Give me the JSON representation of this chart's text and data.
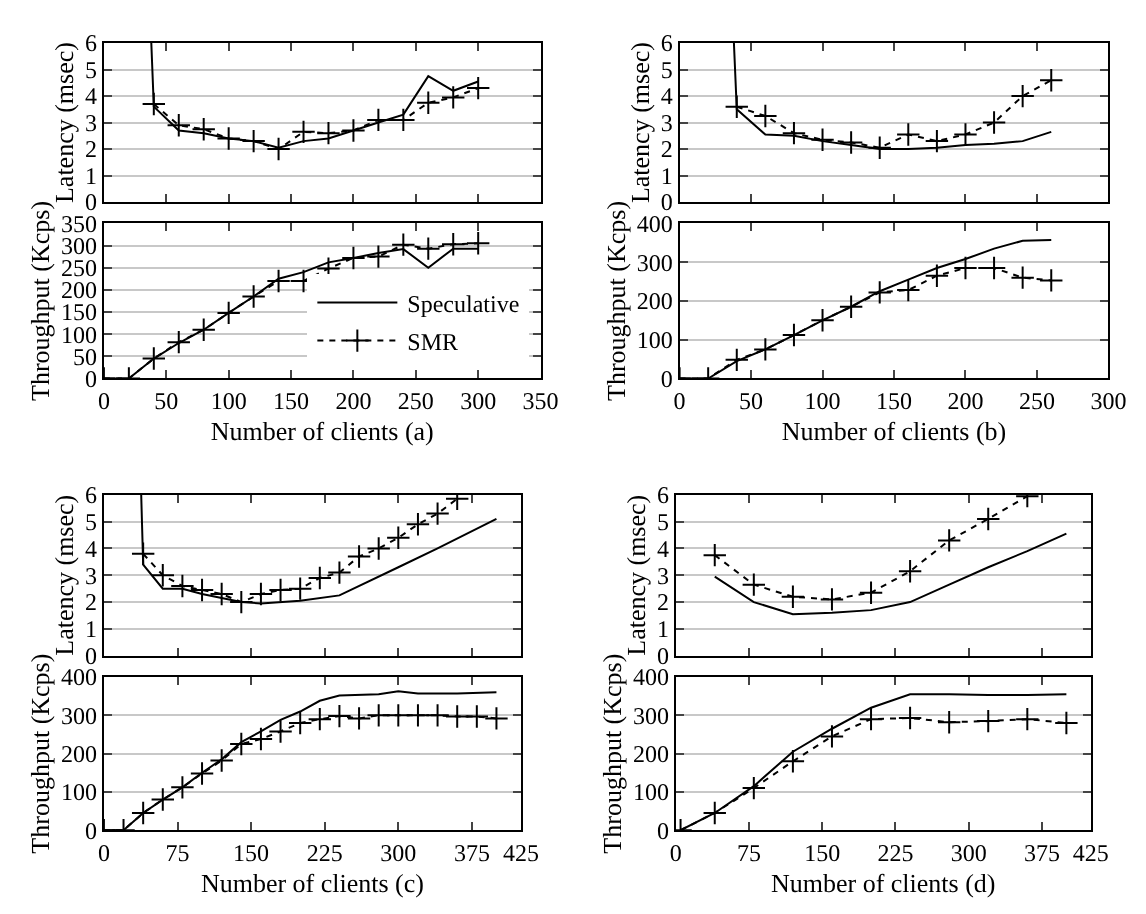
{
  "chart_data": [
    {
      "type": "line",
      "ylabel": "Latency (msec)",
      "xlim": [
        0,
        350
      ],
      "xticks": [
        0,
        50,
        100,
        150,
        200,
        250,
        300,
        350
      ],
      "ylim": [
        0,
        6
      ],
      "yticks": [
        0,
        1,
        2,
        3,
        4,
        5,
        6
      ],
      "grid": "y",
      "tick_labels": "y",
      "series": [
        {
          "color": "#000000",
          "line_style": "solid",
          "marker": "none",
          "x": [
            38,
            40,
            60,
            80,
            100,
            120,
            140,
            160,
            180,
            200,
            220,
            240,
            260,
            280,
            300
          ],
          "values": [
            6,
            3.6,
            2.7,
            2.6,
            2.4,
            2.3,
            2.05,
            2.3,
            2.4,
            2.7,
            3.0,
            3.3,
            4.75,
            4.2,
            4.55
          ]
        },
        {
          "color": "#000000",
          "line_style": "dotted",
          "marker": "cross",
          "x": [
            40,
            60,
            80,
            100,
            120,
            140,
            160,
            180,
            200,
            220,
            240,
            260,
            280,
            300
          ],
          "values": [
            3.7,
            2.9,
            2.75,
            2.4,
            2.3,
            2.0,
            2.65,
            2.6,
            2.7,
            3.1,
            3.1,
            3.75,
            3.95,
            4.3
          ]
        }
      ]
    },
    {
      "type": "line",
      "ylabel": "Throughput (Kcps)",
      "xlabel": "Number of clients (a)",
      "xlim": [
        0,
        350
      ],
      "xticks": [
        0,
        50,
        100,
        150,
        200,
        250,
        300,
        350
      ],
      "ylim": [
        0,
        350
      ],
      "yticks": [
        0,
        50,
        100,
        150,
        200,
        250,
        300,
        350
      ],
      "grid": "y",
      "legend": "bottom right",
      "series": [
        {
          "name": "Speculative",
          "color": "#000000",
          "line_style": "solid",
          "marker": "none",
          "x": [
            0,
            20,
            40,
            60,
            80,
            100,
            120,
            140,
            160,
            180,
            200,
            220,
            240,
            260,
            280,
            300
          ],
          "values": [
            0,
            0,
            45,
            80,
            110,
            148,
            185,
            225,
            240,
            262,
            272,
            283,
            292,
            250,
            293,
            293
          ]
        },
        {
          "name": "SMR",
          "color": "#000000",
          "line_style": "dotted",
          "marker": "cross",
          "x": [
            0,
            20,
            40,
            60,
            80,
            100,
            120,
            140,
            160,
            180,
            200,
            220,
            240,
            260,
            280,
            300
          ],
          "values": [
            0,
            0,
            45,
            82,
            110,
            148,
            185,
            220,
            220,
            248,
            272,
            275,
            302,
            293,
            303,
            305
          ]
        }
      ]
    },
    {
      "type": "line",
      "ylabel": "Latency (msec)",
      "xlim": [
        0,
        300
      ],
      "xticks": [
        0,
        50,
        100,
        150,
        200,
        250,
        300
      ],
      "ylim": [
        0,
        6
      ],
      "yticks": [
        0,
        1,
        2,
        3,
        4,
        5,
        6
      ],
      "grid": "y",
      "tick_labels": "y",
      "series": [
        {
          "color": "#000000",
          "line_style": "solid",
          "marker": "none",
          "x": [
            38,
            40,
            60,
            80,
            100,
            120,
            140,
            160,
            180,
            200,
            220,
            240,
            260
          ],
          "values": [
            6,
            3.5,
            2.55,
            2.5,
            2.3,
            2.15,
            2.0,
            2.0,
            2.05,
            2.15,
            2.2,
            2.3,
            2.65
          ]
        },
        {
          "color": "#000000",
          "line_style": "dotted",
          "marker": "cross",
          "x": [
            40,
            60,
            80,
            100,
            120,
            140,
            160,
            180,
            200,
            220,
            240,
            260
          ],
          "values": [
            3.6,
            3.25,
            2.6,
            2.35,
            2.25,
            2.05,
            2.55,
            2.3,
            2.55,
            3.0,
            4.0,
            4.6
          ]
        }
      ]
    },
    {
      "type": "line",
      "ylabel": "Throughput (Kcps)",
      "xlabel": "Number of clients (b)",
      "xlim": [
        0,
        300
      ],
      "xticks": [
        0,
        50,
        100,
        150,
        200,
        250,
        300
      ],
      "ylim": [
        0,
        400
      ],
      "yticks": [
        0,
        100,
        200,
        300,
        400
      ],
      "grid": "y",
      "series": [
        {
          "color": "#000000",
          "line_style": "solid",
          "marker": "none",
          "x": [
            0,
            20,
            40,
            60,
            80,
            100,
            120,
            140,
            160,
            180,
            200,
            220,
            240,
            260
          ],
          "values": [
            0,
            0,
            45,
            75,
            112,
            150,
            185,
            225,
            255,
            285,
            308,
            335,
            355,
            357
          ]
        },
        {
          "color": "#000000",
          "line_style": "dotted",
          "marker": "cross",
          "x": [
            0,
            20,
            40,
            60,
            80,
            100,
            120,
            140,
            160,
            180,
            200,
            220,
            240,
            260
          ],
          "values": [
            0,
            0,
            48,
            75,
            112,
            150,
            185,
            222,
            228,
            265,
            285,
            285,
            260,
            253
          ]
        }
      ]
    },
    {
      "type": "line",
      "ylabel": "Latency (msec)",
      "xlim": [
        0,
        425
      ],
      "xticks": [
        0,
        75,
        150,
        225,
        300,
        375,
        425
      ],
      "ylim": [
        0,
        6
      ],
      "yticks": [
        0,
        1,
        2,
        3,
        4,
        5,
        6
      ],
      "grid": "y",
      "tick_labels": "y",
      "series": [
        {
          "color": "#000000",
          "line_style": "solid",
          "marker": "none",
          "x": [
            38,
            40,
            60,
            80,
            100,
            120,
            140,
            160,
            200,
            240,
            300,
            340,
            400
          ],
          "values": [
            6,
            3.4,
            2.5,
            2.5,
            2.3,
            2.15,
            2.0,
            1.95,
            2.05,
            2.25,
            3.3,
            4.0,
            5.1
          ]
        },
        {
          "color": "#000000",
          "line_style": "dotted",
          "marker": "cross",
          "x": [
            40,
            60,
            80,
            100,
            120,
            140,
            160,
            180,
            200,
            220,
            240,
            260,
            280,
            300,
            320,
            340,
            360
          ],
          "values": [
            3.8,
            3.0,
            2.6,
            2.45,
            2.3,
            2.0,
            2.3,
            2.45,
            2.5,
            2.9,
            3.1,
            3.7,
            4.0,
            4.4,
            4.9,
            5.3,
            5.85
          ]
        }
      ]
    },
    {
      "type": "line",
      "ylabel": "Throughput (Kcps)",
      "xlabel": "Number of clients (c)",
      "xlim": [
        0,
        425
      ],
      "xticks": [
        0,
        75,
        150,
        225,
        300,
        375,
        425
      ],
      "ylim": [
        0,
        400
      ],
      "yticks": [
        0,
        100,
        200,
        300,
        400
      ],
      "grid": "y",
      "series": [
        {
          "color": "#000000",
          "line_style": "solid",
          "marker": "none",
          "x": [
            0,
            20,
            40,
            60,
            80,
            100,
            120,
            140,
            160,
            180,
            200,
            220,
            240,
            280,
            300,
            320,
            360,
            400
          ],
          "values": [
            0,
            0,
            45,
            80,
            112,
            150,
            185,
            230,
            258,
            288,
            310,
            338,
            352,
            355,
            363,
            357,
            357,
            360
          ]
        },
        {
          "color": "#000000",
          "line_style": "dotted",
          "marker": "cross",
          "x": [
            0,
            20,
            40,
            60,
            80,
            100,
            120,
            140,
            160,
            180,
            200,
            220,
            240,
            260,
            280,
            300,
            320,
            340,
            360,
            380,
            400
          ],
          "values": [
            0,
            0,
            45,
            80,
            112,
            148,
            182,
            225,
            238,
            258,
            280,
            290,
            298,
            292,
            300,
            300,
            300,
            300,
            297,
            297,
            292
          ]
        }
      ]
    },
    {
      "type": "line",
      "ylabel": "Latency (msec)",
      "xlim": [
        0,
        425
      ],
      "xticks": [
        0,
        75,
        150,
        225,
        300,
        375,
        425
      ],
      "ylim": [
        0,
        6
      ],
      "yticks": [
        0,
        1,
        2,
        3,
        4,
        5,
        6
      ],
      "grid": "y",
      "tick_labels": "y",
      "series": [
        {
          "color": "#000000",
          "line_style": "solid",
          "marker": "none",
          "x": [
            40,
            80,
            120,
            160,
            200,
            240,
            280,
            320,
            360,
            400
          ],
          "values": [
            2.95,
            2.0,
            1.55,
            1.6,
            1.7,
            2.0,
            2.65,
            3.3,
            3.9,
            4.55
          ]
        },
        {
          "color": "#000000",
          "line_style": "dotted",
          "marker": "cross",
          "x": [
            40,
            80,
            120,
            160,
            200,
            240,
            280,
            320,
            360
          ],
          "values": [
            3.75,
            2.65,
            2.2,
            2.1,
            2.35,
            3.15,
            4.3,
            5.1,
            5.95
          ]
        }
      ]
    },
    {
      "type": "line",
      "ylabel": "Throughput (Kcps)",
      "xlabel": "Number of clients (d)",
      "xlim": [
        0,
        425
      ],
      "xticks": [
        0,
        75,
        150,
        225,
        300,
        375,
        425
      ],
      "ylim": [
        0,
        400
      ],
      "yticks": [
        0,
        100,
        200,
        300,
        400
      ],
      "grid": "y",
      "series": [
        {
          "color": "#000000",
          "line_style": "solid",
          "marker": "none",
          "x": [
            5,
            40,
            80,
            120,
            160,
            200,
            240,
            280,
            320,
            360,
            400
          ],
          "values": [
            0,
            45,
            115,
            205,
            265,
            320,
            355,
            355,
            353,
            353,
            355
          ]
        },
        {
          "color": "#000000",
          "line_style": "dotted",
          "marker": "cross",
          "x": [
            5,
            40,
            80,
            120,
            160,
            200,
            240,
            280,
            320,
            360,
            400
          ],
          "values": [
            0,
            45,
            110,
            180,
            245,
            290,
            293,
            282,
            285,
            290,
            280
          ]
        }
      ]
    }
  ]
}
